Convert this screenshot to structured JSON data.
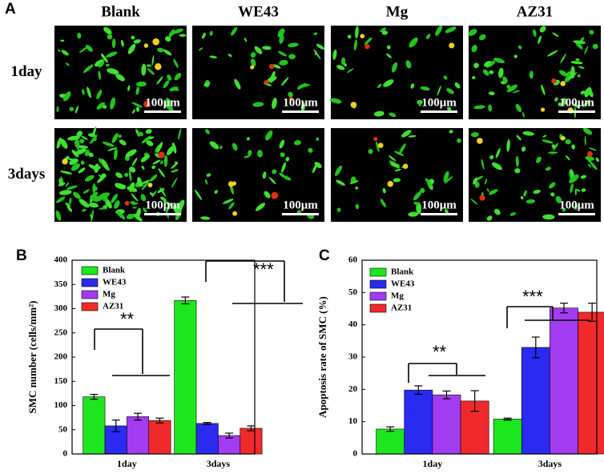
{
  "panel_a": {
    "label": "A",
    "columns": [
      "Blank",
      "WE43",
      "Mg",
      "AZ31"
    ],
    "rows": [
      "1day",
      "3days"
    ],
    "scale_bar": "100μm"
  },
  "chart_data": [
    {
      "type": "bar",
      "panel": "B",
      "ylabel": "SMC number (cells/mm²)",
      "categories": [
        "1day",
        "3days"
      ],
      "series": [
        {
          "name": "Blank",
          "color": "#1ee61e",
          "values": [
            118,
            317
          ],
          "errors": [
            5,
            7
          ]
        },
        {
          "name": "WE43",
          "color": "#2a2af0",
          "values": [
            58,
            63
          ],
          "errors": [
            12,
            2
          ]
        },
        {
          "name": "Mg",
          "color": "#a23cf0",
          "values": [
            77,
            38
          ],
          "errors": [
            7,
            5
          ]
        },
        {
          "name": "AZ31",
          "color": "#f02a2a",
          "values": [
            69,
            53
          ],
          "errors": [
            5,
            5
          ]
        }
      ],
      "ylim": [
        0,
        400
      ],
      "yticks": [
        0,
        50,
        100,
        150,
        200,
        250,
        300,
        350,
        400
      ],
      "annotations": [
        "**",
        "***"
      ]
    },
    {
      "type": "bar",
      "panel": "C",
      "ylabel": "Apoptosis rate of SMC (%)",
      "categories": [
        "1day",
        "3days"
      ],
      "series": [
        {
          "name": "Blank",
          "color": "#1ee61e",
          "values": [
            7.7,
            10.8
          ],
          "errors": [
            0.7,
            0.3
          ]
        },
        {
          "name": "WE43",
          "color": "#2a2af0",
          "values": [
            19.8,
            33
          ],
          "errors": [
            1.3,
            3.2
          ]
        },
        {
          "name": "Mg",
          "color": "#a23cf0",
          "values": [
            18.3,
            45.2
          ],
          "errors": [
            1.2,
            1.5
          ]
        },
        {
          "name": "AZ31",
          "color": "#f02a2a",
          "values": [
            16.4,
            43.9
          ],
          "errors": [
            3.2,
            2.8
          ]
        }
      ],
      "ylim": [
        0,
        60
      ],
      "yticks": [
        0,
        10,
        20,
        30,
        40,
        50,
        60
      ],
      "annotations": [
        "**",
        "***"
      ]
    }
  ]
}
